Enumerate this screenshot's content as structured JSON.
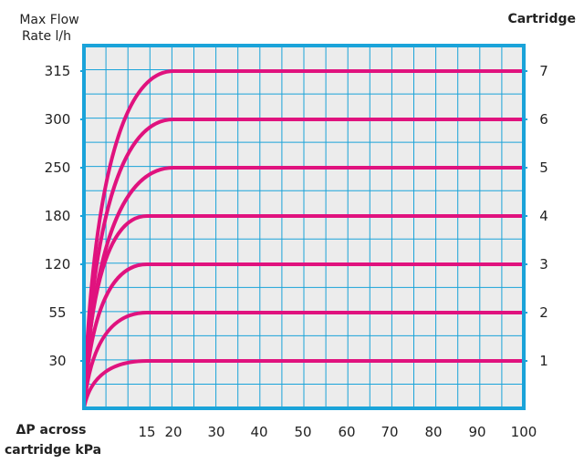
{
  "chart_data": {
    "type": "line",
    "left_axis_title_lines": [
      "Max Flow",
      "Rate l/h"
    ],
    "right_axis_title": "Cartridge",
    "x_axis_title_lines": [
      "ΔP across",
      "cartridge kPa"
    ],
    "x_tick_labels": [
      "15",
      "20",
      "30",
      "40",
      "50",
      "60",
      "70",
      "80",
      "90",
      "100"
    ],
    "left_tick_labels": [
      "315",
      "300",
      "250",
      "180",
      "120",
      "55",
      "30"
    ],
    "right_tick_labels": [
      "7",
      "6",
      "5",
      "4",
      "3",
      "2",
      "1"
    ],
    "series": [
      {
        "name": "7",
        "max_flow": 315,
        "plateau_start_kpa": 20,
        "end_kpa": 100
      },
      {
        "name": "6",
        "max_flow": 300,
        "plateau_start_kpa": 20,
        "end_kpa": 100
      },
      {
        "name": "5",
        "max_flow": 250,
        "plateau_start_kpa": 20,
        "end_kpa": 100
      },
      {
        "name": "4",
        "max_flow": 180,
        "plateau_start_kpa": 15,
        "end_kpa": 100
      },
      {
        "name": "3",
        "max_flow": 120,
        "plateau_start_kpa": 15,
        "end_kpa": 100
      },
      {
        "name": "2",
        "max_flow": 55,
        "plateau_start_kpa": 15,
        "end_kpa": 100
      },
      {
        "name": "1",
        "max_flow": 30,
        "plateau_start_kpa": 15,
        "end_kpa": 100
      }
    ],
    "grid": true,
    "colors": {
      "border": "#1aa3d9",
      "grid": "#1aa3d9",
      "line": "#e0127e",
      "background": "#ececec",
      "text": "#222222"
    }
  }
}
